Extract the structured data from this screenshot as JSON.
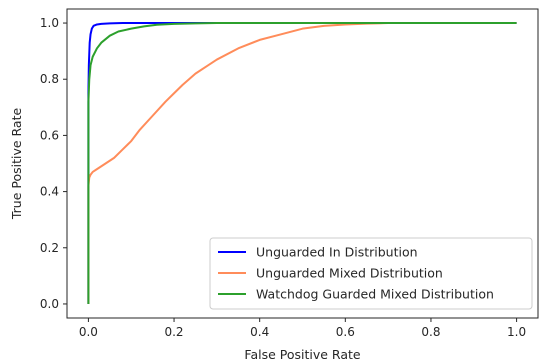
{
  "chart_data": {
    "type": "line",
    "title": "",
    "xlabel": "False Positive Rate",
    "ylabel": "True Positive Rate",
    "xlim": [
      -0.05,
      1.05
    ],
    "ylim": [
      -0.05,
      1.05
    ],
    "xticks": [
      0.0,
      0.2,
      0.4,
      0.6,
      0.8,
      1.0
    ],
    "xtick_labels": [
      "0.0",
      "0.2",
      "0.4",
      "0.6",
      "0.8",
      "1.0"
    ],
    "yticks": [
      0.0,
      0.2,
      0.4,
      0.6,
      0.8,
      1.0
    ],
    "ytick_labels": [
      "0.0",
      "0.2",
      "0.4",
      "0.6",
      "0.8",
      "1.0"
    ],
    "grid": false,
    "legend_position": "lower-right",
    "series": [
      {
        "name": "Unguarded In Distribution",
        "color": "#0000ff",
        "x": [
          0.0,
          0.0,
          0.001,
          0.003,
          0.005,
          0.008,
          0.012,
          0.02,
          0.03,
          0.05,
          0.08,
          0.12,
          0.2,
          0.4,
          0.6,
          0.8,
          1.0
        ],
        "y": [
          0.0,
          0.75,
          0.85,
          0.93,
          0.96,
          0.98,
          0.99,
          0.995,
          0.997,
          0.999,
          1.0,
          1.0,
          1.0,
          1.0,
          1.0,
          1.0,
          1.0
        ]
      },
      {
        "name": "Unguarded Mixed Distribution",
        "color": "#ff8c5a",
        "x": [
          0.0,
          0.0,
          0.002,
          0.005,
          0.01,
          0.02,
          0.04,
          0.06,
          0.08,
          0.1,
          0.12,
          0.15,
          0.18,
          0.2,
          0.22,
          0.25,
          0.28,
          0.3,
          0.35,
          0.4,
          0.45,
          0.5,
          0.55,
          0.6,
          0.65,
          0.7,
          0.8,
          0.9,
          1.0
        ],
        "y": [
          0.0,
          0.42,
          0.45,
          0.46,
          0.47,
          0.48,
          0.5,
          0.52,
          0.55,
          0.58,
          0.62,
          0.67,
          0.72,
          0.75,
          0.78,
          0.82,
          0.85,
          0.87,
          0.91,
          0.94,
          0.96,
          0.98,
          0.99,
          0.995,
          0.998,
          1.0,
          1.0,
          1.0,
          1.0
        ]
      },
      {
        "name": "Watchdog Guarded Mixed Distribution",
        "color": "#2ca02c",
        "x": [
          0.0,
          0.0,
          0.002,
          0.005,
          0.01,
          0.02,
          0.03,
          0.05,
          0.07,
          0.1,
          0.13,
          0.16,
          0.2,
          0.25,
          0.3,
          0.4,
          0.6,
          0.8,
          1.0
        ],
        "y": [
          0.0,
          0.72,
          0.8,
          0.85,
          0.88,
          0.91,
          0.93,
          0.955,
          0.97,
          0.98,
          0.988,
          0.994,
          0.997,
          0.999,
          1.0,
          1.0,
          1.0,
          1.0,
          1.0
        ]
      }
    ]
  }
}
